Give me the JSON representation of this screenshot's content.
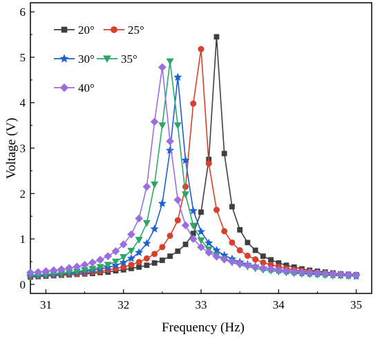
{
  "chart_data": {
    "type": "line",
    "xlabel": "Frequency (Hz)",
    "ylabel": "Voltage (V)",
    "xlim": [
      30.8,
      35.2
    ],
    "ylim": [
      -0.2,
      6.2
    ],
    "x_ticks": [
      31,
      32,
      33,
      34,
      35
    ],
    "y_ticks": [
      0,
      1,
      2,
      3,
      4,
      5,
      6
    ],
    "x_tick_labels": [
      "31",
      "32",
      "33",
      "34",
      "35"
    ],
    "y_tick_labels": [
      "0",
      "1",
      "2",
      "3",
      "4",
      "5",
      "6"
    ],
    "grid": false,
    "legend_position": "top-left",
    "x": [
      30.8,
      30.9,
      31.0,
      31.1,
      31.2,
      31.3,
      31.4,
      31.5,
      31.6,
      31.7,
      31.8,
      31.9,
      32.0,
      32.1,
      32.2,
      32.3,
      32.4,
      32.5,
      32.6,
      32.7,
      32.8,
      32.9,
      33.0,
      33.1,
      33.2,
      33.3,
      33.4,
      33.5,
      33.6,
      33.7,
      33.8,
      33.9,
      34.0,
      34.1,
      34.2,
      34.3,
      34.4,
      34.5,
      34.6,
      34.7,
      34.8,
      34.9,
      35.0
    ],
    "series": [
      {
        "name": "20°",
        "color": "#3f3f3f",
        "marker": "square",
        "values": [
          0.16,
          0.17,
          0.18,
          0.19,
          0.2,
          0.21,
          0.22,
          0.23,
          0.24,
          0.26,
          0.27,
          0.3,
          0.32,
          0.35,
          0.38,
          0.42,
          0.47,
          0.53,
          0.62,
          0.73,
          0.88,
          1.12,
          1.59,
          2.75,
          5.45,
          2.88,
          1.71,
          1.2,
          0.92,
          0.75,
          0.62,
          0.54,
          0.47,
          0.42,
          0.38,
          0.34,
          0.31,
          0.29,
          0.27,
          0.25,
          0.23,
          0.22,
          0.21
        ]
      },
      {
        "name": "25°",
        "color": "#d6402c",
        "marker": "circle",
        "values": [
          0.17,
          0.18,
          0.19,
          0.2,
          0.21,
          0.22,
          0.23,
          0.25,
          0.27,
          0.29,
          0.32,
          0.35,
          0.38,
          0.43,
          0.49,
          0.57,
          0.67,
          0.82,
          1.07,
          1.41,
          2.15,
          3.98,
          5.18,
          2.66,
          1.64,
          1.17,
          0.92,
          0.75,
          0.63,
          0.55,
          0.48,
          0.43,
          0.39,
          0.35,
          0.32,
          0.3,
          0.28,
          0.26,
          0.24,
          0.23,
          0.22,
          0.21,
          0.2
        ]
      },
      {
        "name": "30°",
        "color": "#1f5fd0",
        "marker": "star",
        "values": [
          0.18,
          0.19,
          0.2,
          0.21,
          0.23,
          0.24,
          0.26,
          0.28,
          0.31,
          0.34,
          0.37,
          0.42,
          0.48,
          0.57,
          0.7,
          0.9,
          1.22,
          1.78,
          2.95,
          4.56,
          2.73,
          1.62,
          1.16,
          0.91,
          0.75,
          0.64,
          0.56,
          0.49,
          0.44,
          0.4,
          0.36,
          0.33,
          0.31,
          0.29,
          0.27,
          0.25,
          0.24,
          0.23,
          0.22,
          0.21,
          0.2,
          0.19,
          0.18
        ]
      },
      {
        "name": "35°",
        "color": "#2ea66a",
        "marker": "triangle-down",
        "values": [
          0.19,
          0.2,
          0.21,
          0.23,
          0.24,
          0.26,
          0.28,
          0.31,
          0.34,
          0.38,
          0.43,
          0.5,
          0.6,
          0.74,
          0.98,
          1.35,
          2.2,
          3.5,
          4.91,
          3.5,
          1.98,
          1.29,
          0.97,
          0.77,
          0.64,
          0.55,
          0.48,
          0.43,
          0.39,
          0.35,
          0.32,
          0.3,
          0.28,
          0.26,
          0.24,
          0.23,
          0.22,
          0.21,
          0.2,
          0.19,
          0.19,
          0.18,
          0.18
        ]
      },
      {
        "name": "40°",
        "color": "#9b6ee0",
        "marker": "diamond",
        "values": [
          0.26,
          0.27,
          0.29,
          0.31,
          0.33,
          0.36,
          0.39,
          0.43,
          0.48,
          0.54,
          0.62,
          0.73,
          0.88,
          1.1,
          1.45,
          2.15,
          3.58,
          4.78,
          3.15,
          1.86,
          1.3,
          1.0,
          0.82,
          0.7,
          0.61,
          0.55,
          0.5,
          0.45,
          0.42,
          0.39,
          0.36,
          0.34,
          0.32,
          0.3,
          0.28,
          0.27,
          0.26,
          0.25,
          0.24,
          0.23,
          0.22,
          0.21,
          0.2
        ]
      }
    ]
  }
}
